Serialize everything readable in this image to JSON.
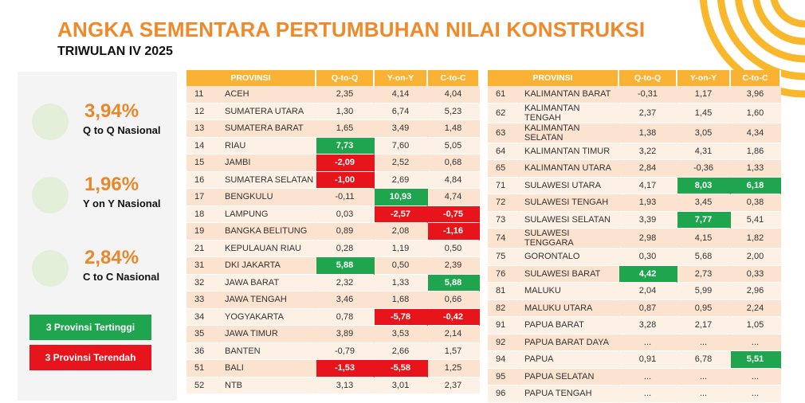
{
  "header": {
    "title": "ANGKA SEMENTARA PERTUMBUHAN NILAI KONSTRUKSI",
    "subtitle": "TRIWULAN IV 2025"
  },
  "colors": {
    "accent": "#F0892A",
    "header": "#F9B233",
    "highest": "#1FA54E",
    "lowest": "#E8141B"
  },
  "stats": [
    {
      "value": "3,94%",
      "label": "Q to Q Nasional",
      "icon": "laptop-chart-icon"
    },
    {
      "value": "1,96%",
      "label": "Y on Y Nasional",
      "icon": "coins-growth-icon"
    },
    {
      "value": "2,84%",
      "label": "C to C Nasional",
      "icon": "coins-person-icon"
    }
  ],
  "legend": {
    "highest": "3 Provinsi Tertinggi",
    "lowest": "3 Provinsi Terendah"
  },
  "columns": [
    "PROVINSI",
    "Q-to-Q",
    "Y-on-Y",
    "C-to-C"
  ],
  "left_rows": [
    [
      "11",
      "ACEH",
      "2,35",
      "4,14",
      "4,04",
      "",
      "",
      ""
    ],
    [
      "12",
      "SUMATERA UTARA",
      "1,30",
      "6,74",
      "5,23",
      "",
      "",
      ""
    ],
    [
      "13",
      "SUMATERA BARAT",
      "1,65",
      "3,49",
      "1,48",
      "",
      "",
      ""
    ],
    [
      "14",
      "RIAU",
      "7,73",
      "7,60",
      "5,05",
      "g",
      "",
      ""
    ],
    [
      "15",
      "JAMBI",
      "-2,09",
      "2,52",
      "0,68",
      "r",
      "",
      ""
    ],
    [
      "16",
      "SUMATERA SELATAN",
      "-1,00",
      "2,69",
      "4,84",
      "r",
      "",
      ""
    ],
    [
      "17",
      "BENGKULU",
      "-0,11",
      "10,93",
      "4,74",
      "",
      "g",
      ""
    ],
    [
      "18",
      "LAMPUNG",
      "0,03",
      "-2,57",
      "-0,75",
      "",
      "r",
      "r"
    ],
    [
      "19",
      "BANGKA BELITUNG",
      "0,89",
      "2,08",
      "-1,16",
      "",
      "",
      "r"
    ],
    [
      "21",
      "KEPULAUAN RIAU",
      "0,28",
      "1,19",
      "0,50",
      "",
      "",
      ""
    ],
    [
      "31",
      "DKI JAKARTA",
      "5,88",
      "0,50",
      "2,39",
      "g",
      "",
      ""
    ],
    [
      "32",
      "JAWA BARAT",
      "2,32",
      "1,33",
      "5,88",
      "",
      "",
      "g"
    ],
    [
      "33",
      "JAWA TENGAH",
      "3,46",
      "1,68",
      "0,66",
      "",
      "",
      ""
    ],
    [
      "34",
      "YOGYAKARTA",
      "0,78",
      "-5,78",
      "-0,42",
      "",
      "r",
      "r"
    ],
    [
      "35",
      "JAWA TIMUR",
      "3,89",
      "3,53",
      "2,14",
      "",
      "",
      ""
    ],
    [
      "36",
      "BANTEN",
      "-0,79",
      "2,66",
      "1,57",
      "",
      "",
      ""
    ],
    [
      "51",
      "BALI",
      "-1,53",
      "-5,58",
      "1,25",
      "r",
      "r",
      ""
    ],
    [
      "52",
      "NTB",
      "3,13",
      "3,01",
      "2,37",
      "",
      "",
      ""
    ]
  ],
  "right_rows": [
    [
      "61",
      "KALIMANTAN BARAT",
      "-0,31",
      "1,17",
      "3,96",
      "",
      "",
      ""
    ],
    [
      "62",
      "KALIMANTAN TENGAH",
      "2,37",
      "1,45",
      "1,60",
      "",
      "",
      ""
    ],
    [
      "63",
      "KALIMANTAN SELATAN",
      "1,38",
      "3,05",
      "4,34",
      "",
      "",
      ""
    ],
    [
      "64",
      "KALIMANTAN TIMUR",
      "3,22",
      "4,31",
      "1,86",
      "",
      "",
      ""
    ],
    [
      "65",
      "KALIMANTAN UTARA",
      "2,84",
      "-0,36",
      "1,33",
      "",
      "",
      ""
    ],
    [
      "71",
      "SULAWESI UTARA",
      "4,17",
      "8,03",
      "6,18",
      "",
      "g",
      "g"
    ],
    [
      "72",
      "SULAWESI TENGAH",
      "1,93",
      "3,45",
      "0,38",
      "",
      "",
      ""
    ],
    [
      "73",
      "SULAWESI SELATAN",
      "3,39",
      "7,77",
      "5,41",
      "",
      "g",
      ""
    ],
    [
      "74",
      "SULAWESI TENGGARA",
      "2,98",
      "4,15",
      "1,82",
      "",
      "",
      ""
    ],
    [
      "75",
      "GORONTALO",
      "0,30",
      "5,68",
      "2,00",
      "",
      "",
      ""
    ],
    [
      "76",
      "SULAWESI BARAT",
      "4,42",
      "2,73",
      "0,33",
      "g",
      "",
      ""
    ],
    [
      "81",
      "MALUKU",
      "2,04",
      "5,99",
      "2,96",
      "",
      "",
      ""
    ],
    [
      "82",
      "MALUKU UTARA",
      "0,87",
      "0,95",
      "2,24",
      "",
      "",
      ""
    ],
    [
      "91",
      "PAPUA BARAT",
      "3,28",
      "2,17",
      "1,05",
      "",
      "",
      ""
    ],
    [
      "92",
      "PAPUA BARAT DAYA",
      "...",
      "...",
      "...",
      "",
      "",
      ""
    ],
    [
      "94",
      "PAPUA",
      "0,91",
      "6,78",
      "5,51",
      "",
      "",
      "g"
    ],
    [
      "95",
      "PAPUA SELATAN",
      "...",
      "...",
      "...",
      "",
      "",
      ""
    ],
    [
      "96",
      "PAPUA TENGAH",
      "...",
      "...",
      "...",
      "",
      "",
      ""
    ]
  ]
}
